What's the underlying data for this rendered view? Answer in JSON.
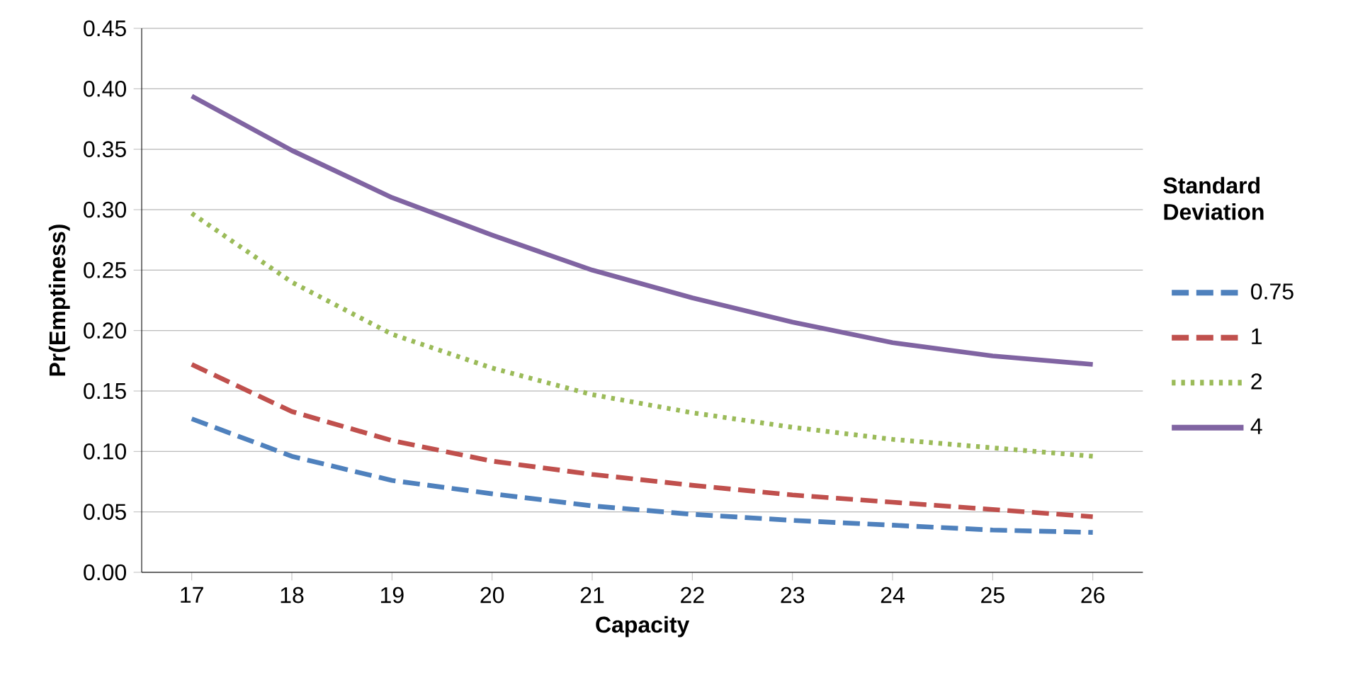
{
  "chart_data": {
    "type": "line",
    "xlabel": "Capacity",
    "ylabel": "Pr(Emptiness)",
    "legend_title": "Standard Deviation",
    "categories": [
      "17",
      "18",
      "19",
      "20",
      "21",
      "22",
      "23",
      "24",
      "25",
      "26"
    ],
    "ylim": [
      0,
      0.45
    ],
    "yticks": [
      {
        "value": 0,
        "label": "0.00"
      },
      {
        "value": 0.05,
        "label": "0.05"
      },
      {
        "value": 0.1,
        "label": "0.10"
      },
      {
        "value": 0.15,
        "label": "0.15"
      },
      {
        "value": 0.2,
        "label": "0.20"
      },
      {
        "value": 0.25,
        "label": "0.25"
      },
      {
        "value": 0.3,
        "label": "0.30"
      },
      {
        "value": 0.35,
        "label": "0.35"
      },
      {
        "value": 0.4,
        "label": "0.40"
      },
      {
        "value": 0.45,
        "label": "0.45"
      }
    ],
    "grid": "y",
    "legend": "right",
    "marker": "none",
    "series": [
      {
        "name": "0.75",
        "color": "#4f81bd",
        "line_style": "dashed",
        "values": [
          0.127,
          0.096,
          0.076,
          0.065,
          0.055,
          0.048,
          0.043,
          0.039,
          0.035,
          0.033
        ]
      },
      {
        "name": "1",
        "color": "#c0504d",
        "line_style": "dashed",
        "values": [
          0.172,
          0.133,
          0.109,
          0.092,
          0.081,
          0.072,
          0.064,
          0.058,
          0.052,
          0.046
        ]
      },
      {
        "name": "2",
        "color": "#9bbb59",
        "line_style": "dotted",
        "values": [
          0.297,
          0.24,
          0.197,
          0.169,
          0.147,
          0.132,
          0.12,
          0.11,
          0.103,
          0.096
        ]
      },
      {
        "name": "4",
        "color": "#8064a2",
        "line_style": "solid",
        "values": [
          0.394,
          0.349,
          0.31,
          0.279,
          0.25,
          0.227,
          0.207,
          0.19,
          0.179,
          0.172
        ]
      }
    ]
  }
}
